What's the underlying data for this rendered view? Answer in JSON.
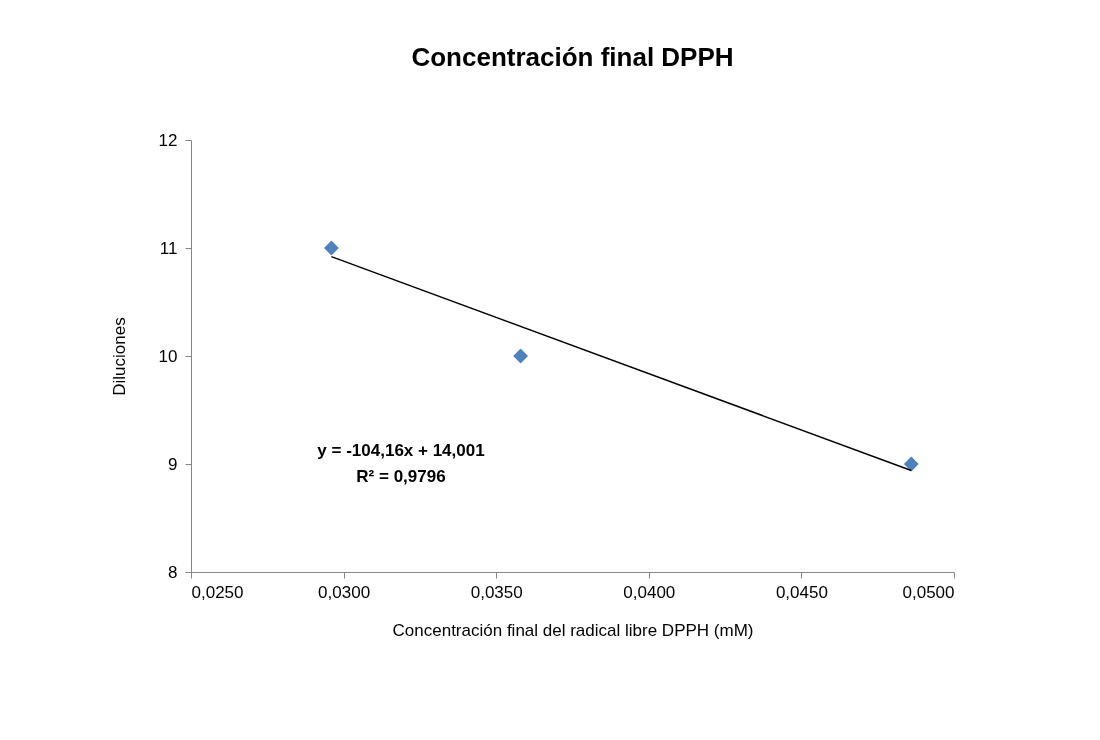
{
  "chart_data": {
    "type": "scatter",
    "title": "Concentración final DPPH",
    "xlabel": "Concentración final  del radical libre DPPH (mM)",
    "ylabel": "Diluciones",
    "series": [
      {
        "color": "#4f81bd",
        "x": [
          0.0296,
          0.0358,
          0.0486
        ],
        "values": [
          11,
          10,
          9
        ],
        "marker": "diamond"
      },
      {
        "type": "line",
        "color": "#000000",
        "x": [
          0.0296,
          0.0486
        ],
        "values": [
          10.92,
          8.94
        ],
        "marker": "none",
        "line_style": "solid"
      }
    ],
    "annotations": [
      "y = -104,16x + 14,001",
      "R² = 0,9796"
    ],
    "xlim": [
      0.025,
      0.05
    ],
    "xticks": [
      {
        "value": 0.025,
        "label": "0,0250"
      },
      {
        "value": 0.03,
        "label": "0,0300"
      },
      {
        "value": 0.035,
        "label": "0,0350"
      },
      {
        "value": 0.04,
        "label": "0,0400"
      },
      {
        "value": 0.045,
        "label": "0,0450"
      },
      {
        "value": 0.05,
        "label": "0,0500"
      }
    ],
    "ylim": [
      8,
      12
    ],
    "yticks": [
      8,
      9,
      10,
      11,
      12
    ],
    "grid": false
  }
}
